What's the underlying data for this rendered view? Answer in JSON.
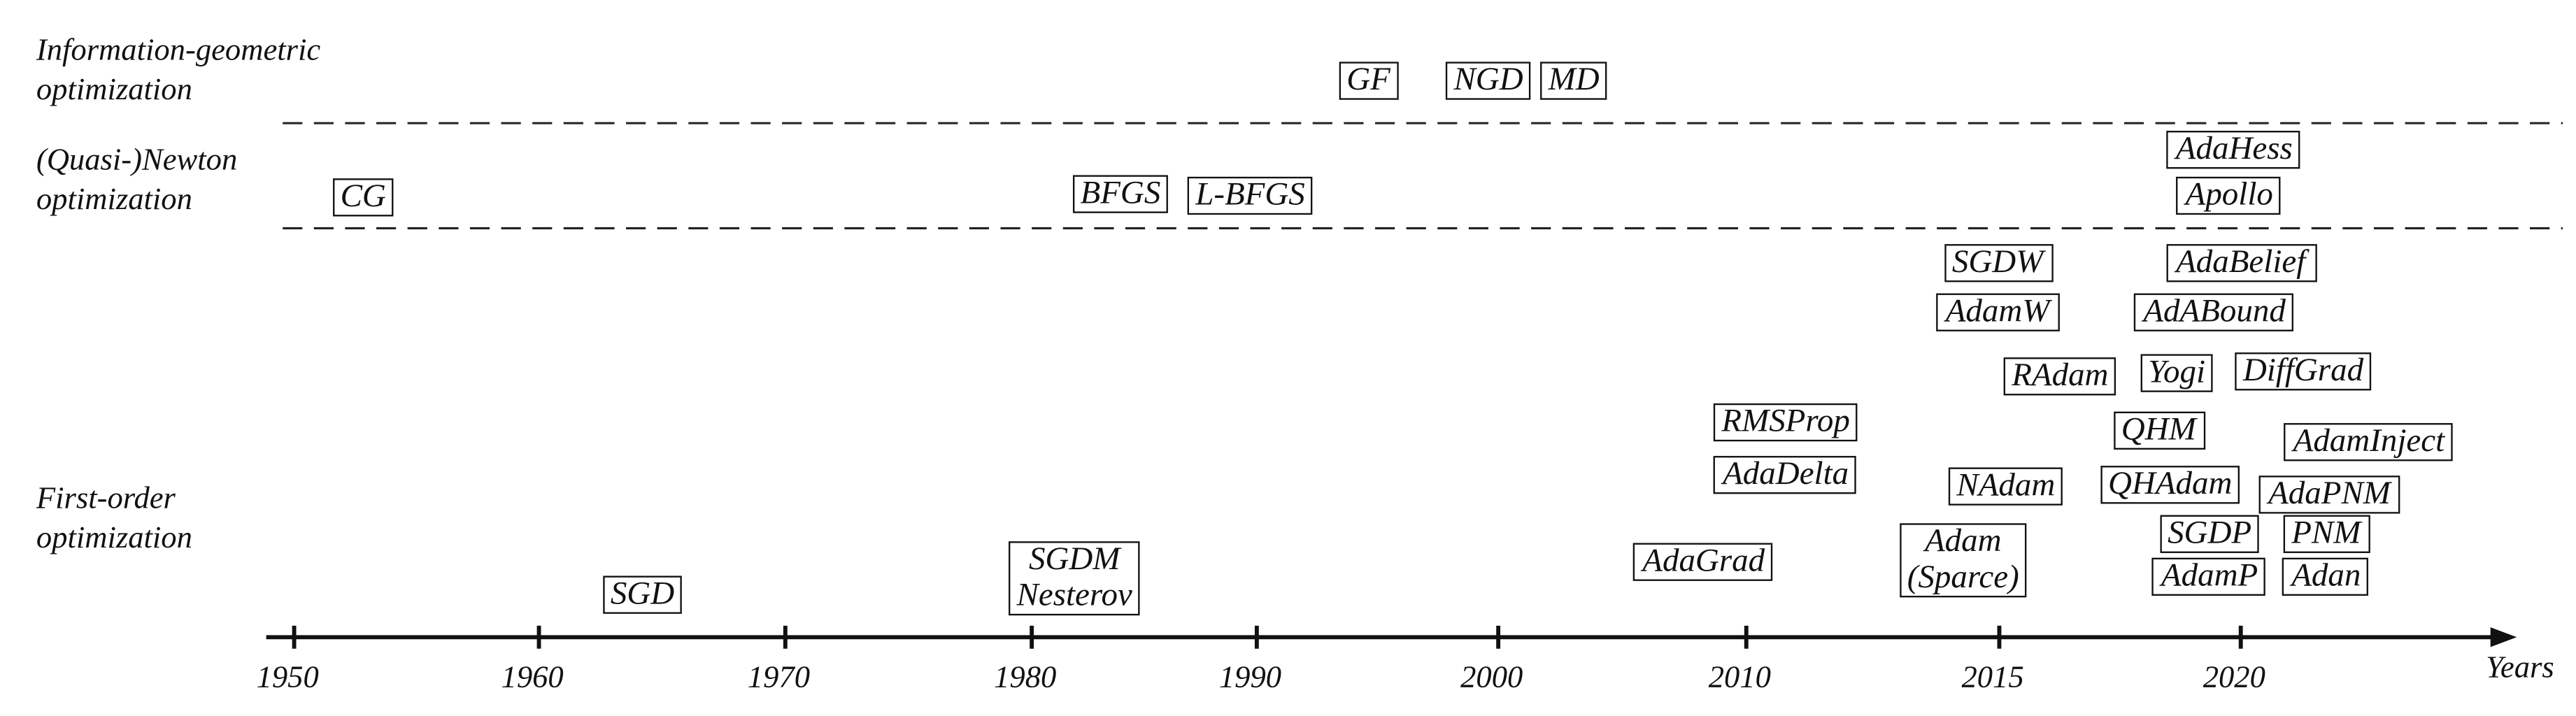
{
  "rows": [
    {
      "lines": [
        "Information-geometric",
        "optimization"
      ]
    },
    {
      "lines": [
        "(Quasi-)Newton",
        "optimization"
      ]
    },
    {
      "lines": [
        "First-order",
        "optimization"
      ]
    }
  ],
  "axis": {
    "ticks": [
      "1950",
      "1960",
      "1970",
      "1980",
      "1990",
      "2000",
      "2010",
      "2015",
      "2020"
    ],
    "label": "Years"
  },
  "methods": [
    {
      "lines": [
        "GF"
      ]
    },
    {
      "lines": [
        "NGD"
      ]
    },
    {
      "lines": [
        "MD"
      ]
    },
    {
      "lines": [
        "CG"
      ]
    },
    {
      "lines": [
        "BFGS"
      ]
    },
    {
      "lines": [
        "L-BFGS"
      ]
    },
    {
      "lines": [
        "AdaHess"
      ]
    },
    {
      "lines": [
        "Apollo"
      ]
    },
    {
      "lines": [
        "SGDW"
      ]
    },
    {
      "lines": [
        "AdamW"
      ]
    },
    {
      "lines": [
        "AdaBelief"
      ]
    },
    {
      "lines": [
        "AdABound"
      ]
    },
    {
      "lines": [
        "RAdam"
      ]
    },
    {
      "lines": [
        "Yogi"
      ]
    },
    {
      "lines": [
        "DiffGrad"
      ]
    },
    {
      "lines": [
        "RMSProp"
      ]
    },
    {
      "lines": [
        "AdaDelta"
      ]
    },
    {
      "lines": [
        "QHM"
      ]
    },
    {
      "lines": [
        "AdamInject"
      ]
    },
    {
      "lines": [
        "NAdam"
      ]
    },
    {
      "lines": [
        "QHAdam"
      ]
    },
    {
      "lines": [
        "AdaPNM"
      ]
    },
    {
      "lines": [
        "SGDP"
      ]
    },
    {
      "lines": [
        "PNM"
      ]
    },
    {
      "lines": [
        "AdaGrad"
      ]
    },
    {
      "lines": [
        "Adam",
        "(Sparce)"
      ]
    },
    {
      "lines": [
        "AdamP"
      ]
    },
    {
      "lines": [
        "Adan"
      ]
    },
    {
      "lines": [
        "SGD"
      ]
    },
    {
      "lines": [
        "SGDM",
        "Nesterov"
      ]
    }
  ]
}
